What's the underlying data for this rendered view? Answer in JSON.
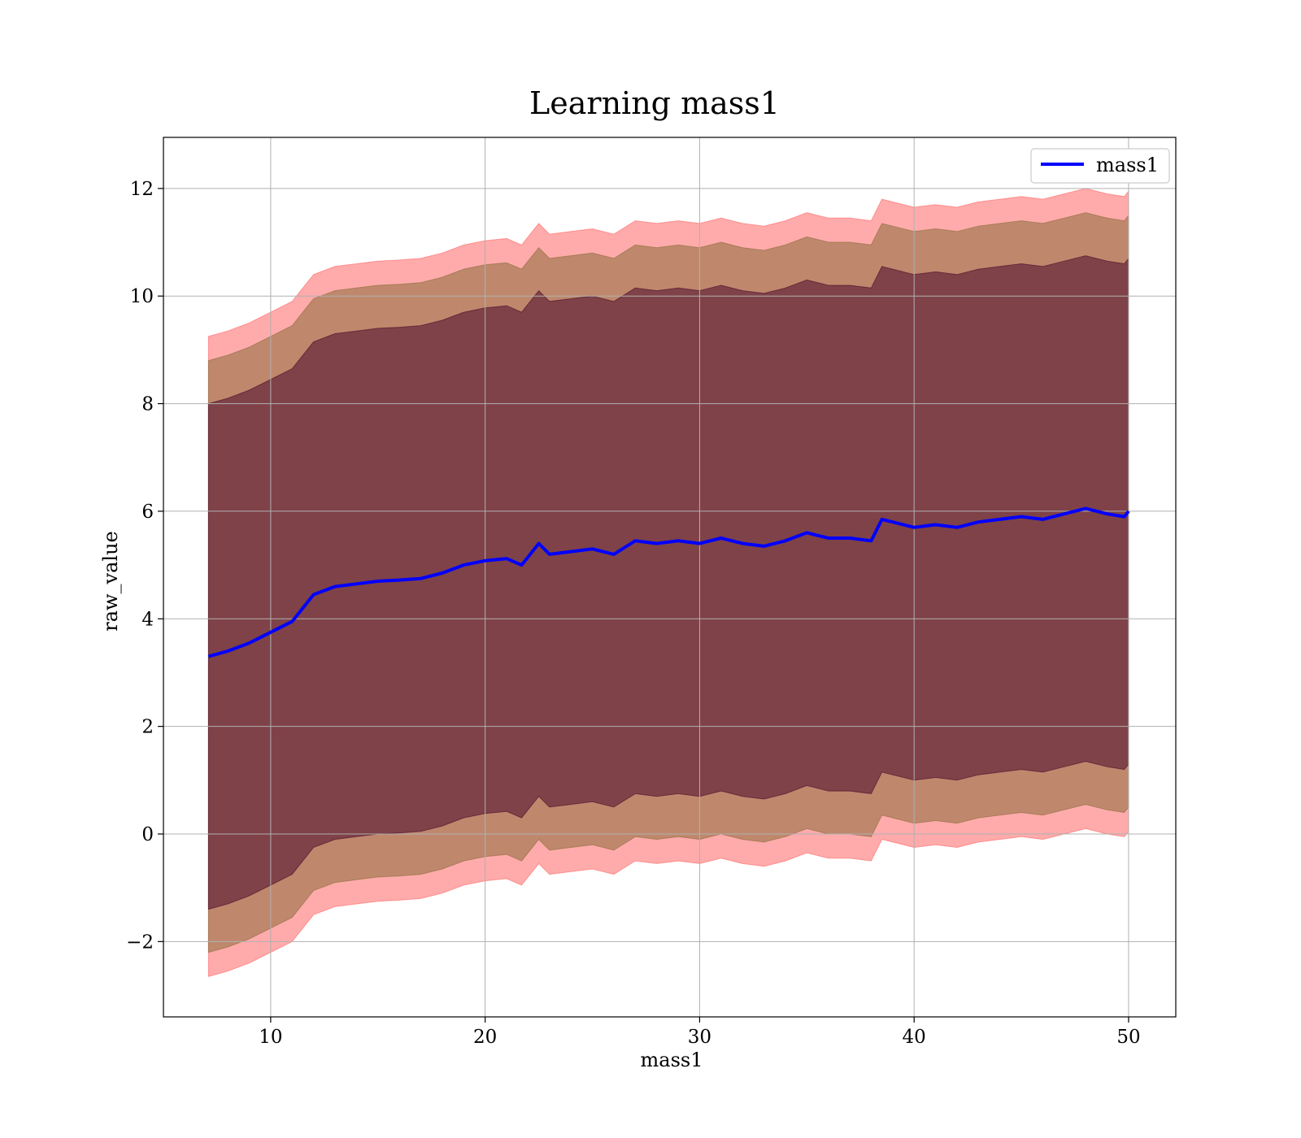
{
  "chart_data": {
    "type": "area",
    "title": "Learning mass1",
    "xlabel": "mass1",
    "ylabel": "raw_value",
    "xlim": [
      5,
      52.2
    ],
    "ylim": [
      -3.4,
      12.95
    ],
    "xticks": [
      10,
      20,
      30,
      40,
      50
    ],
    "xtick_labels": [
      "10",
      "20",
      "30",
      "40",
      "50"
    ],
    "yticks": [
      -2,
      0,
      2,
      4,
      6,
      8,
      10,
      12
    ],
    "ytick_labels": [
      "−2",
      "0",
      "2",
      "4",
      "6",
      "8",
      "10",
      "12"
    ],
    "grid": true,
    "legend_position": "top-right",
    "series": [
      {
        "name": "mass1",
        "color": "#0000ff",
        "x": [
          7.1,
          8.0,
          9.0,
          10.0,
          11.0,
          12.0,
          13.0,
          14.0,
          15.0,
          16.0,
          17.0,
          18.0,
          19.0,
          20.0,
          20.5,
          21.0,
          21.7,
          22.0,
          22.5,
          23.0,
          24.0,
          25.0,
          26.0,
          27.0,
          28.0,
          29.0,
          30.0,
          31.0,
          32.0,
          33.0,
          34.0,
          35.0,
          36.0,
          37.0,
          38.0,
          38.5,
          39.0,
          40.0,
          41.0,
          42.0,
          43.0,
          44.0,
          45.0,
          46.0,
          47.0,
          48.0,
          49.0,
          49.8,
          50.0
        ],
        "y": [
          3.3,
          3.4,
          3.55,
          3.75,
          3.95,
          4.45,
          4.6,
          4.65,
          4.7,
          4.72,
          4.75,
          4.85,
          5.0,
          5.08,
          5.1,
          5.12,
          5.0,
          5.15,
          5.4,
          5.2,
          5.25,
          5.3,
          5.2,
          5.45,
          5.4,
          5.45,
          5.4,
          5.5,
          5.4,
          5.35,
          5.45,
          5.6,
          5.5,
          5.5,
          5.45,
          5.85,
          5.8,
          5.7,
          5.75,
          5.7,
          5.8,
          5.85,
          5.9,
          5.85,
          5.95,
          6.05,
          5.95,
          5.9,
          6.0
        ]
      }
    ],
    "bands": [
      {
        "color": "#ff6666",
        "lower_offset": -5.95,
        "upper_offset": 5.95
      },
      {
        "color": "#8b6b3a",
        "lower_offset": -5.5,
        "upper_offset": 5.5
      },
      {
        "color": "#4a0a2a",
        "lower_offset": -4.7,
        "upper_offset": 4.7
      }
    ]
  }
}
